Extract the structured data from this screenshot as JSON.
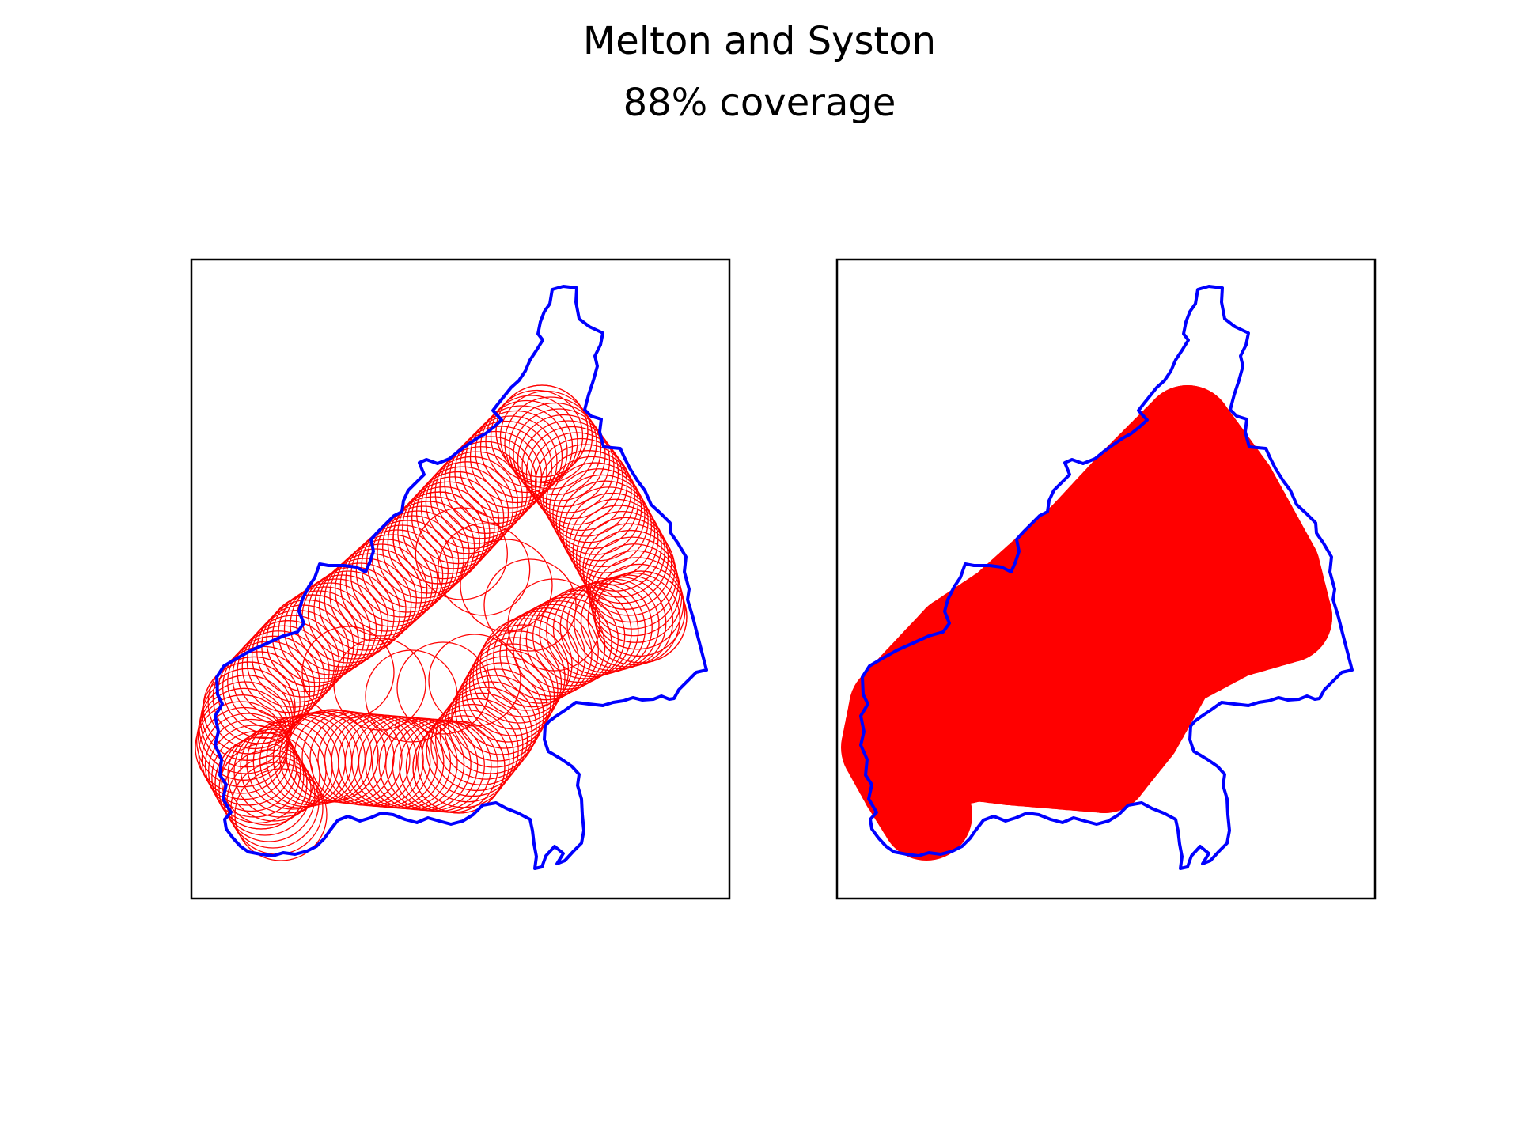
{
  "title": "Melton and Syston",
  "subtitle": "88% coverage",
  "colors": {
    "boundary": "#0000ff",
    "coverage": "#ff0000",
    "frame": "#000000",
    "background": "#ffffff"
  },
  "panels": [
    {
      "id": "left",
      "style": "outline"
    },
    {
      "id": "right",
      "style": "filled"
    }
  ]
}
